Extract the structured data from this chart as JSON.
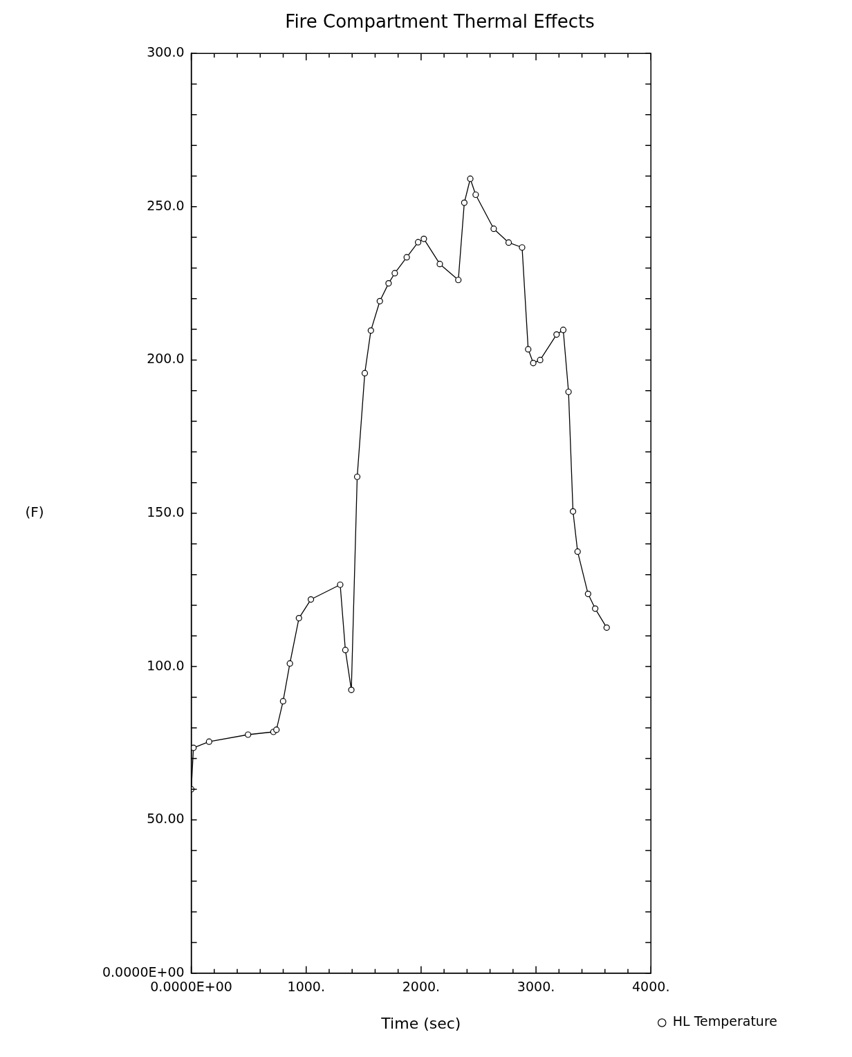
{
  "chart_data": {
    "type": "line",
    "title": "Fire Compartment Thermal Effects",
    "xlabel": "Time (sec)",
    "ylabel": "(F)",
    "x": [
      0,
      19,
      155,
      494,
      715,
      741,
      799,
      858,
      937,
      1041,
      1296,
      1341,
      1393,
      1444,
      1510,
      1563,
      1641,
      1717,
      1771,
      1875,
      1974,
      2024,
      2163,
      2324,
      2376,
      2428,
      2475,
      2632,
      2762,
      2879,
      2932,
      2976,
      3036,
      3179,
      3237,
      3283,
      3322,
      3362,
      3453,
      3515,
      3615
    ],
    "series": [
      {
        "name": "HL Temperature",
        "color": "#000000",
        "values": [
          60,
          73.5,
          75.5,
          77.8,
          78.7,
          79.4,
          88.7,
          101,
          115.8,
          121.9,
          126.7,
          105.4,
          92.4,
          161.9,
          195.7,
          209.6,
          219.2,
          225,
          228.3,
          233.5,
          238.4,
          239.5,
          231.3,
          226.1,
          251.3,
          259.1,
          253.9,
          242.8,
          238.3,
          236.7,
          203.5,
          199,
          200,
          208.3,
          209.8,
          189.6,
          150.6,
          137.5,
          123.7,
          118.9,
          112.7
        ]
      }
    ],
    "xlim": [
      0,
      4000
    ],
    "xticks": [
      {
        "value": 0,
        "label": "0.0000E+00"
      },
      {
        "value": 200,
        "label": null
      },
      {
        "value": 400,
        "label": null
      },
      {
        "value": 600,
        "label": null
      },
      {
        "value": 800,
        "label": null
      },
      {
        "value": 1000,
        "label": "1000."
      },
      {
        "value": 1200,
        "label": null
      },
      {
        "value": 1400,
        "label": null
      },
      {
        "value": 1600,
        "label": null
      },
      {
        "value": 1800,
        "label": null
      },
      {
        "value": 2000,
        "label": "2000."
      },
      {
        "value": 2200,
        "label": null
      },
      {
        "value": 2400,
        "label": null
      },
      {
        "value": 2600,
        "label": null
      },
      {
        "value": 2800,
        "label": null
      },
      {
        "value": 3000,
        "label": "3000."
      },
      {
        "value": 3200,
        "label": null
      },
      {
        "value": 3400,
        "label": null
      },
      {
        "value": 3600,
        "label": null
      },
      {
        "value": 3800,
        "label": null
      },
      {
        "value": 4000,
        "label": "4000."
      }
    ],
    "ylim": [
      0,
      300
    ],
    "yticks": [
      {
        "value": 0,
        "label": "0.0000E+00"
      },
      {
        "value": 10,
        "label": null
      },
      {
        "value": 20,
        "label": null
      },
      {
        "value": 30,
        "label": null
      },
      {
        "value": 40,
        "label": null
      },
      {
        "value": 50,
        "label": "50.00"
      },
      {
        "value": 60,
        "label": null
      },
      {
        "value": 70,
        "label": null
      },
      {
        "value": 80,
        "label": null
      },
      {
        "value": 90,
        "label": null
      },
      {
        "value": 100,
        "label": "100.0"
      },
      {
        "value": 110,
        "label": null
      },
      {
        "value": 120,
        "label": null
      },
      {
        "value": 130,
        "label": null
      },
      {
        "value": 140,
        "label": null
      },
      {
        "value": 150,
        "label": "150.0"
      },
      {
        "value": 160,
        "label": null
      },
      {
        "value": 170,
        "label": null
      },
      {
        "value": 180,
        "label": null
      },
      {
        "value": 190,
        "label": null
      },
      {
        "value": 200,
        "label": "200.0"
      },
      {
        "value": 210,
        "label": null
      },
      {
        "value": 220,
        "label": null
      },
      {
        "value": 230,
        "label": null
      },
      {
        "value": 240,
        "label": null
      },
      {
        "value": 250,
        "label": "250.0"
      },
      {
        "value": 260,
        "label": null
      },
      {
        "value": 270,
        "label": null
      },
      {
        "value": 280,
        "label": null
      },
      {
        "value": 290,
        "label": null
      },
      {
        "value": 300,
        "label": "300.0"
      }
    ],
    "grid": false,
    "legend": "bottom right",
    "marker": "circle",
    "line_style": "solid"
  }
}
